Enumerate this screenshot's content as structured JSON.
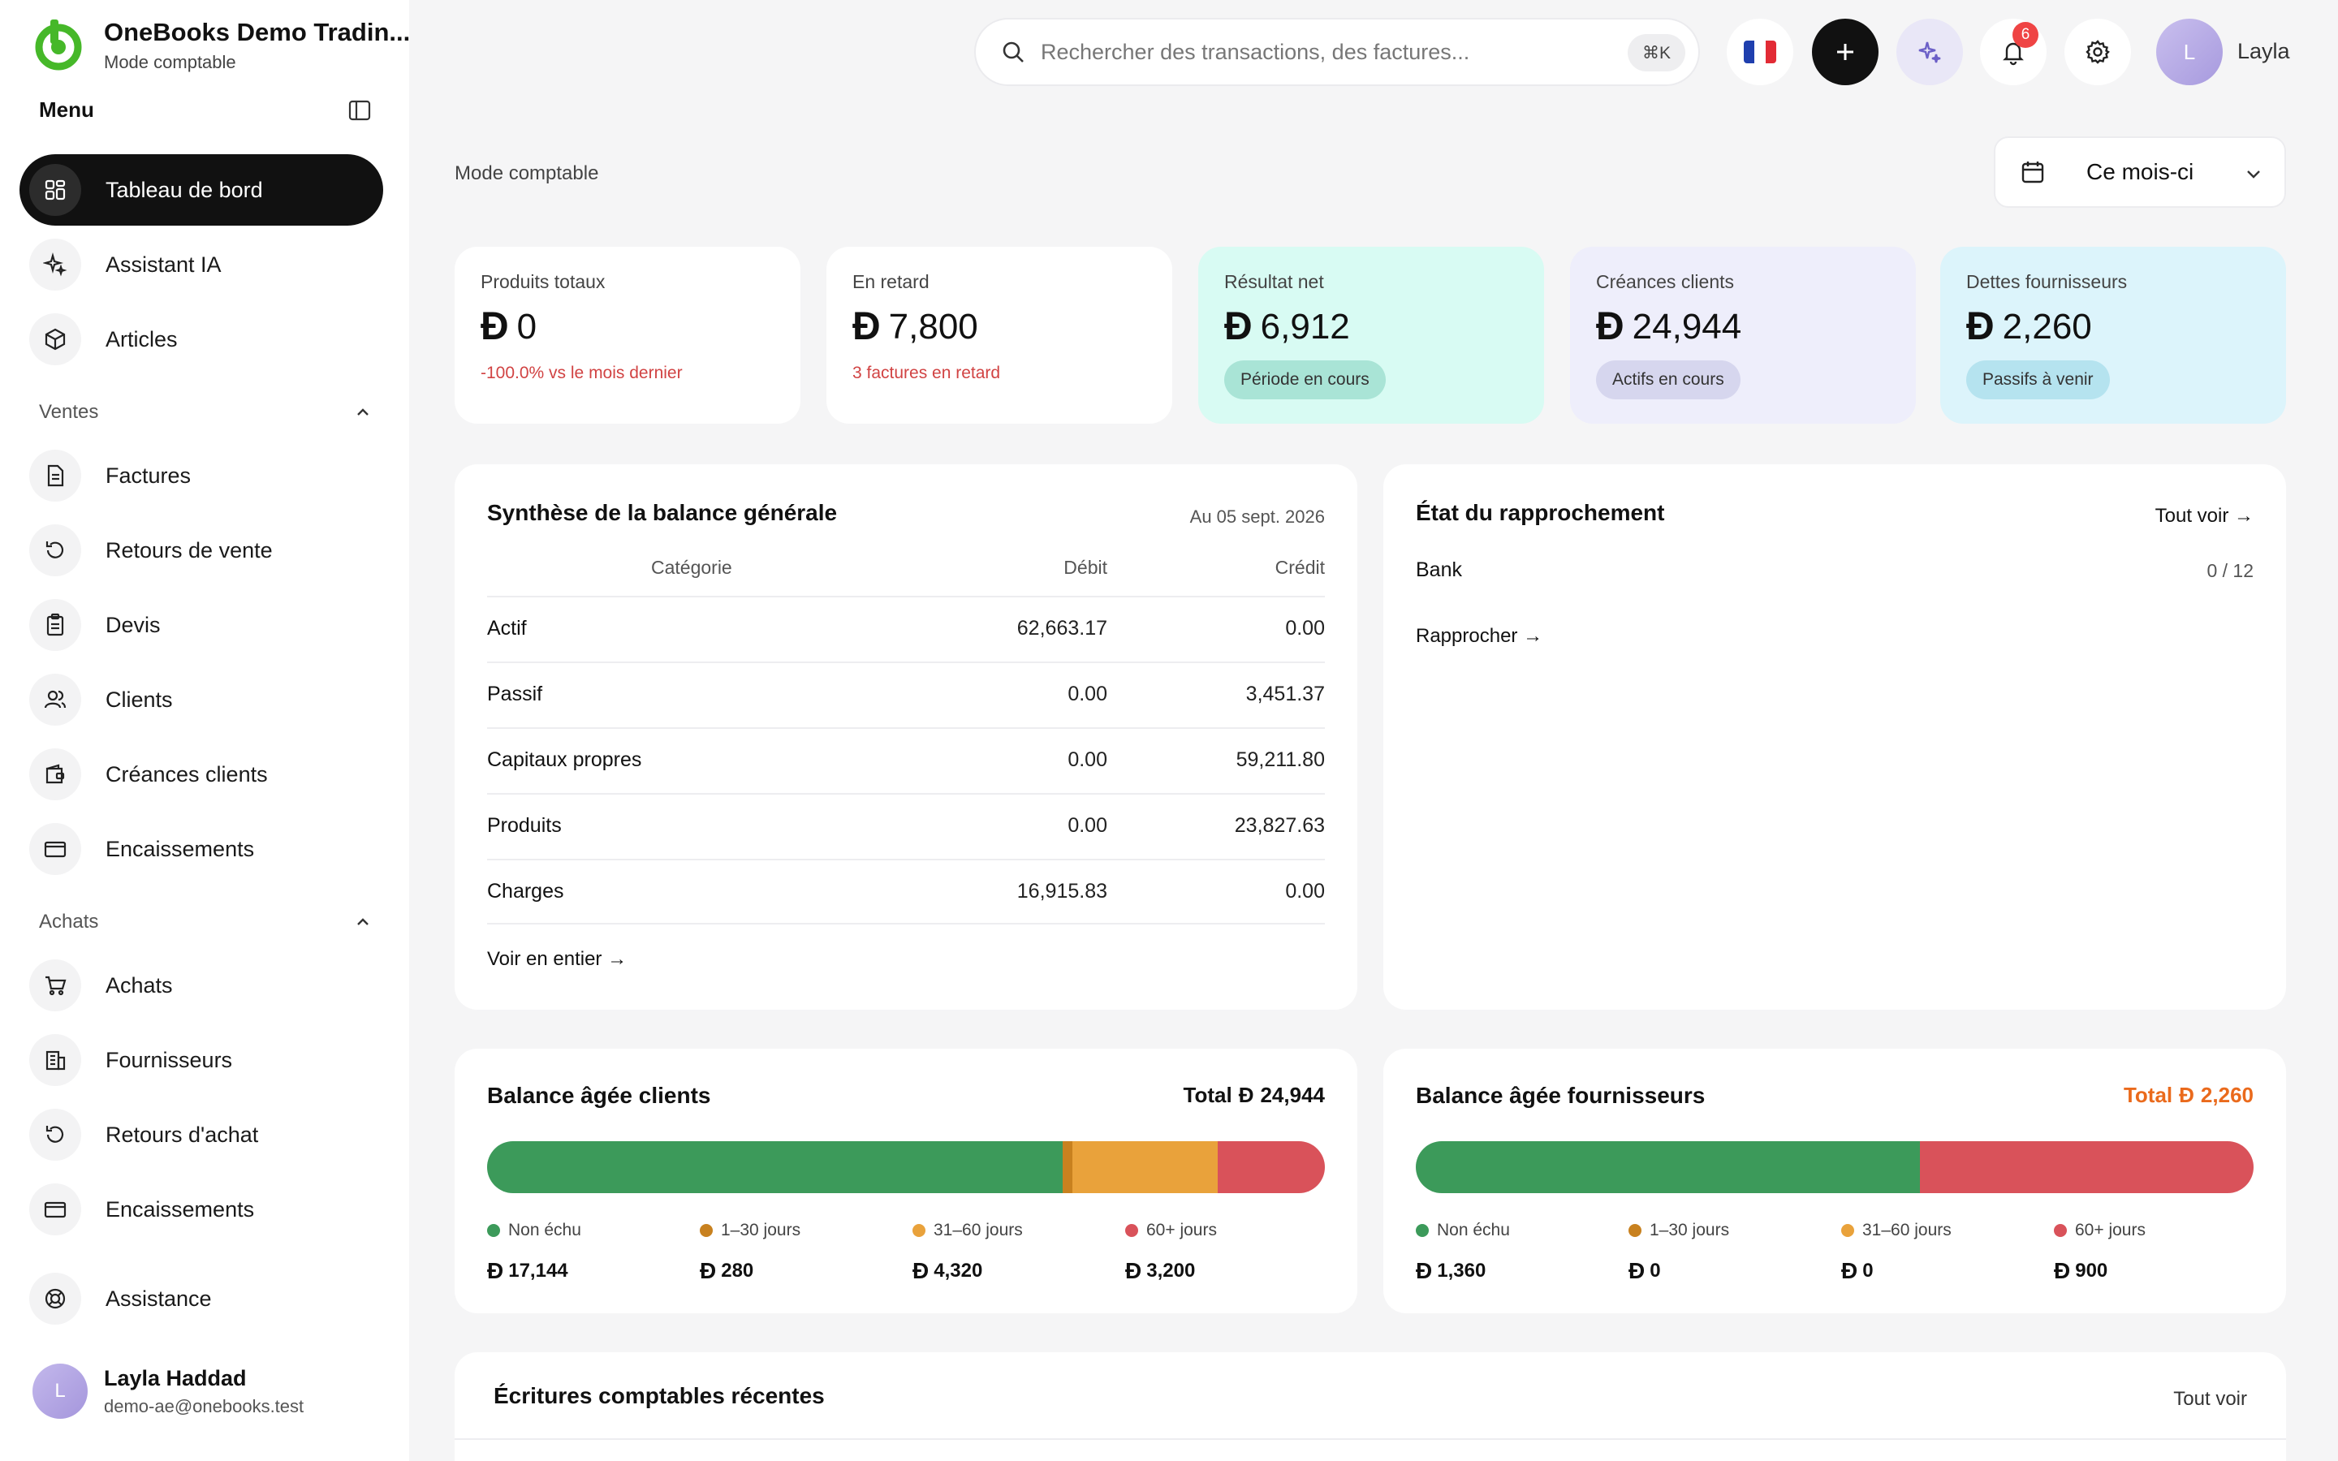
{
  "app": {
    "company": "OneBooks Demo Tradin...",
    "mode": "Mode comptable",
    "menu_label": "Menu"
  },
  "sidebar": {
    "items": [
      {
        "label": "Tableau de bord",
        "icon": "dashboard-icon"
      },
      {
        "label": "Assistant IA",
        "icon": "sparkles-icon"
      },
      {
        "label": "Articles",
        "icon": "box-icon"
      }
    ],
    "sales_header": "Ventes",
    "sales_items": [
      {
        "label": "Factures",
        "icon": "invoice-icon"
      },
      {
        "label": "Retours de vente",
        "icon": "return-icon"
      },
      {
        "label": "Devis",
        "icon": "quote-icon"
      },
      {
        "label": "Clients",
        "icon": "users-icon"
      },
      {
        "label": "Créances clients",
        "icon": "wallet-icon"
      },
      {
        "label": "Encaissements",
        "icon": "card-icon"
      }
    ],
    "purchases_header": "Achats",
    "purchases_items": [
      {
        "label": "Achats",
        "icon": "cart-icon"
      },
      {
        "label": "Fournisseurs",
        "icon": "building-icon"
      },
      {
        "label": "Retours d'achat",
        "icon": "return-icon"
      },
      {
        "label": "Encaissements",
        "icon": "card-icon"
      }
    ],
    "support": {
      "label": "Assistance",
      "icon": "lifebuoy-icon"
    },
    "user": {
      "initial": "L",
      "name": "Layla Haddad",
      "email": "demo-ae@onebooks.test"
    }
  },
  "topbar": {
    "search_placeholder": "Rechercher des transactions, des factures...",
    "search_shortcut": "⌘K",
    "notifications_count": "6",
    "user_initial": "L",
    "user_name": "Layla"
  },
  "main": {
    "breadcrumb": "Mode comptable",
    "period": "Ce mois-ci",
    "currency_symbol": "Ð",
    "kpis": [
      {
        "title": "Produits totaux",
        "value": "0",
        "sub": "-100.0% vs le mois dernier"
      },
      {
        "title": "En retard",
        "value": "7,800",
        "sub": "3 factures en retard"
      },
      {
        "title": "Résultat net",
        "value": "6,912",
        "pill": "Période en cours"
      },
      {
        "title": "Créances clients",
        "value": "24,944",
        "pill": "Actifs en cours"
      },
      {
        "title": "Dettes fournisseurs",
        "value": "2,260",
        "pill": "Passifs à venir"
      }
    ],
    "trial_balance": {
      "title": "Synthèse de la balance générale",
      "date": "Au 05 sept. 2026",
      "headers": {
        "category": "Catégorie",
        "debit": "Débit",
        "credit": "Crédit"
      },
      "rows": [
        {
          "category": "Actif",
          "debit": "62,663.17",
          "credit": "0.00"
        },
        {
          "category": "Passif",
          "debit": "0.00",
          "credit": "3,451.37"
        },
        {
          "category": "Capitaux propres",
          "debit": "0.00",
          "credit": "59,211.80"
        },
        {
          "category": "Produits",
          "debit": "0.00",
          "credit": "23,827.63"
        },
        {
          "category": "Charges",
          "debit": "16,915.83",
          "credit": "0.00"
        }
      ],
      "link": "Voir en entier →"
    },
    "reconciliation": {
      "title": "État du rapprochement",
      "view_all": "Tout voir →",
      "account": "Bank",
      "progress": "0 / 12",
      "action": "Rapprocher →"
    },
    "aging_customers": {
      "title": "Balance âgée clients",
      "total_label": "Total",
      "total": "24,944",
      "buckets": [
        {
          "label": "Non échu",
          "value": "17,144",
          "amount": 17144,
          "color": "#3c9a5a"
        },
        {
          "label": "1–30 jours",
          "value": "280",
          "amount": 280,
          "color": "#c8811f"
        },
        {
          "label": "31–60 jours",
          "value": "4,320",
          "amount": 4320,
          "color": "#e9a23b"
        },
        {
          "label": "60+ jours",
          "value": "3,200",
          "amount": 3200,
          "color": "#d9525a"
        }
      ]
    },
    "aging_suppliers": {
      "title": "Balance âgée fournisseurs",
      "total_label": "Total",
      "total": "2,260",
      "buckets": [
        {
          "label": "Non échu",
          "value": "1,360",
          "amount": 1360,
          "color": "#3c9a5a"
        },
        {
          "label": "1–30 jours",
          "value": "0",
          "amount": 0,
          "color": "#c8811f"
        },
        {
          "label": "31–60 jours",
          "value": "0",
          "amount": 0,
          "color": "#e9a23b"
        },
        {
          "label": "60+ jours",
          "value": "900",
          "amount": 900,
          "color": "#d9525a"
        }
      ]
    },
    "recent_entries": {
      "title": "Écritures comptables récentes",
      "view_all": "Tout voir"
    }
  }
}
